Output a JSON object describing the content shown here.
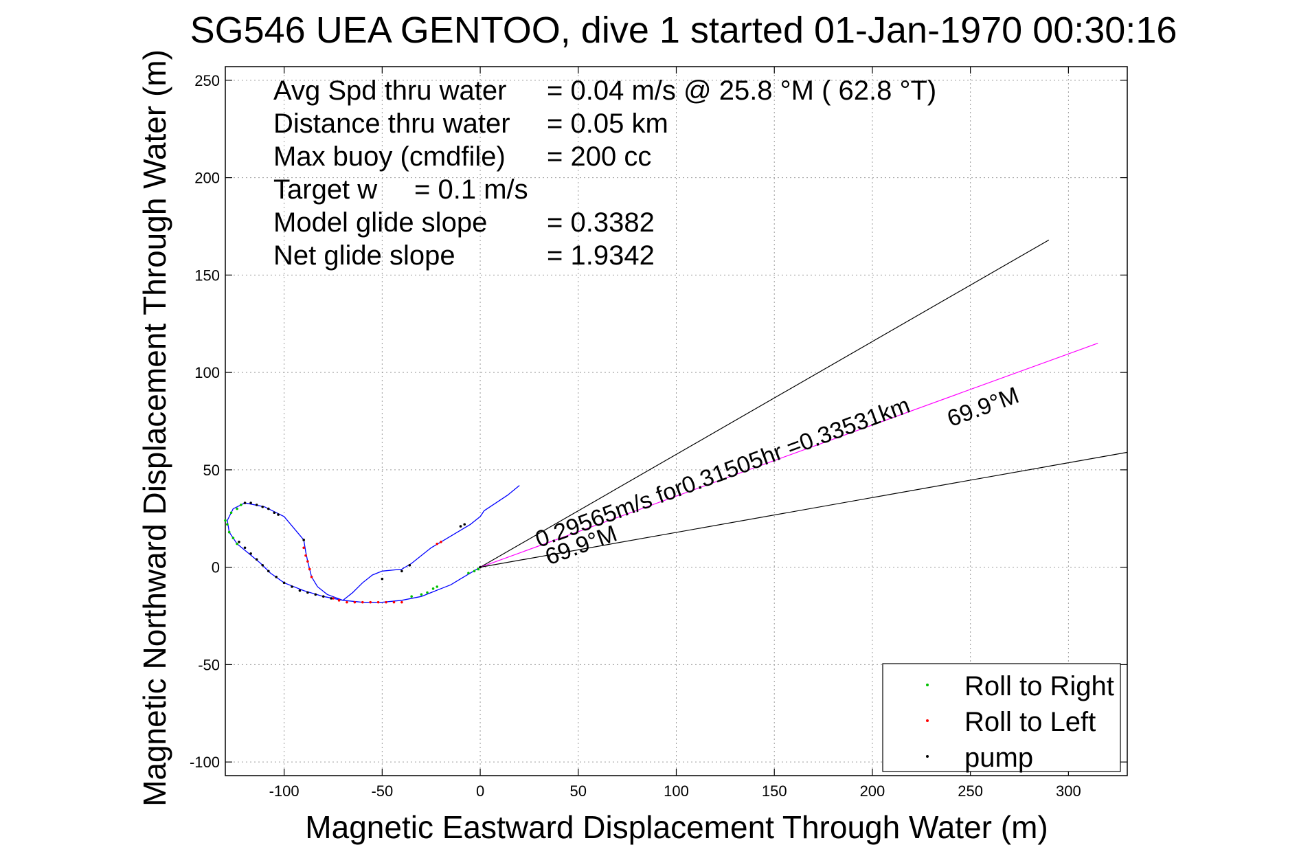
{
  "chart_data": {
    "type": "scatter",
    "title": "SG546 UEA GENTOO, dive 1 started 01-Jan-1970 00:30:16",
    "xlabel": "Magnetic Eastward Displacement Through Water (m)",
    "ylabel": "Magnetic Northward Displacement Through Water (m)",
    "xlim": [
      -130,
      330
    ],
    "ylim": [
      -107,
      257
    ],
    "xticks": [
      -100,
      -50,
      0,
      50,
      100,
      150,
      200,
      250,
      300
    ],
    "yticks": [
      -100,
      -50,
      0,
      50,
      100,
      150,
      200,
      250
    ],
    "grid": true,
    "legend_position": "bottom-right",
    "stats": [
      {
        "label": "Avg Spd thru water",
        "value": "=  0.04 m/s @  25.8 °M ( 62.8 °T)"
      },
      {
        "label": "Distance thru water",
        "value": "=  0.05 km"
      },
      {
        "label": "Max buoy (cmdfile)",
        "value": "= 200 cc"
      },
      {
        "label": "Target w",
        "value": "= 0.1 m/s"
      },
      {
        "label": "Model glide slope",
        "value": "= 0.3382"
      },
      {
        "label": "Net glide slope",
        "value": "= 1.9342"
      }
    ],
    "track": {
      "color": "#0000ff",
      "points": [
        [
          0,
          0
        ],
        [
          -5,
          -3
        ],
        [
          -10,
          -6
        ],
        [
          -15,
          -9
        ],
        [
          -20,
          -11
        ],
        [
          -25,
          -13
        ],
        [
          -30,
          -15
        ],
        [
          -40,
          -17
        ],
        [
          -50,
          -18
        ],
        [
          -60,
          -18
        ],
        [
          -70,
          -17
        ],
        [
          -80,
          -15
        ],
        [
          -90,
          -12
        ],
        [
          -100,
          -8
        ],
        [
          -107,
          -3
        ],
        [
          -112,
          2
        ],
        [
          -118,
          7
        ],
        [
          -124,
          12
        ],
        [
          -128,
          18
        ],
        [
          -129,
          24
        ],
        [
          -126,
          30
        ],
        [
          -120,
          33
        ],
        [
          -110,
          31
        ],
        [
          -100,
          26
        ],
        [
          -95,
          20
        ],
        [
          -90,
          14
        ],
        [
          -89,
          8
        ],
        [
          -88,
          3
        ],
        [
          -86,
          -5
        ],
        [
          -83,
          -10
        ],
        [
          -78,
          -14
        ],
        [
          -70,
          -17
        ],
        [
          -65,
          -13
        ],
        [
          -60,
          -8
        ],
        [
          -55,
          -4
        ],
        [
          -50,
          -2
        ],
        [
          -40,
          -1
        ],
        [
          -35,
          2
        ],
        [
          -30,
          6
        ],
        [
          -25,
          10
        ],
        [
          -20,
          13
        ],
        [
          -15,
          16
        ],
        [
          -10,
          19
        ],
        [
          -5,
          22
        ],
        [
          0,
          26
        ],
        [
          2,
          29
        ],
        [
          8,
          33
        ],
        [
          14,
          37
        ],
        [
          20,
          42
        ]
      ]
    },
    "series": [
      {
        "name": "Roll to Right",
        "color": "#00c000",
        "points": [
          [
            -130,
            24
          ],
          [
            -129,
            22
          ],
          [
            -128,
            18
          ],
          [
            -126,
            15
          ],
          [
            -124,
            12
          ],
          [
            -127,
            28
          ],
          [
            -124,
            30
          ],
          [
            -122,
            32
          ],
          [
            -35,
            -15
          ],
          [
            -30,
            -14
          ],
          [
            -27,
            -13
          ],
          [
            -24,
            -11
          ],
          [
            -22,
            -10
          ],
          [
            -6,
            -3
          ],
          [
            -3,
            -2
          ],
          [
            -1,
            -1
          ]
        ]
      },
      {
        "name": "Roll to Left",
        "color": "#ff0000",
        "points": [
          [
            -90,
            10
          ],
          [
            -89,
            6
          ],
          [
            -88,
            3
          ],
          [
            -87,
            -1
          ],
          [
            -86,
            -5
          ],
          [
            -75,
            -16
          ],
          [
            -72,
            -17
          ],
          [
            -68,
            -18
          ],
          [
            -64,
            -18
          ],
          [
            -60,
            -18
          ],
          [
            -56,
            -18
          ],
          [
            -52,
            -18
          ],
          [
            -48,
            -18
          ],
          [
            -44,
            -18
          ],
          [
            -40,
            -18
          ],
          [
            -22,
            12
          ],
          [
            -20,
            13
          ]
        ]
      },
      {
        "name": "pump",
        "color": "#000000",
        "points": [
          [
            -120,
            33
          ],
          [
            -117,
            33
          ],
          [
            -114,
            32
          ],
          [
            -111,
            31
          ],
          [
            -108,
            30
          ],
          [
            -105,
            28
          ],
          [
            -103,
            27
          ],
          [
            -123,
            13
          ],
          [
            -120,
            10
          ],
          [
            -117,
            7
          ],
          [
            -114,
            4
          ],
          [
            -111,
            1
          ],
          [
            -108,
            -2
          ],
          [
            -104,
            -5
          ],
          [
            -100,
            -8
          ],
          [
            -96,
            -10
          ],
          [
            -92,
            -12
          ],
          [
            -88,
            -13
          ],
          [
            -84,
            -14
          ],
          [
            -80,
            -15
          ],
          [
            -76,
            -16
          ],
          [
            -90,
            14
          ],
          [
            -50,
            -6
          ],
          [
            -40,
            -2
          ],
          [
            -36,
            1
          ],
          [
            -10,
            21
          ],
          [
            -8,
            22
          ],
          [
            0,
            0
          ]
        ]
      }
    ],
    "reference_lines": [
      {
        "name": "upper",
        "color": "#000000",
        "x": [
          0,
          290
        ],
        "y": [
          0,
          168
        ]
      },
      {
        "name": "mean",
        "color": "#ff00ff",
        "x": [
          0,
          315
        ],
        "y": [
          0,
          115
        ]
      },
      {
        "name": "lower",
        "color": "#000000",
        "x": [
          0,
          330
        ],
        "y": [
          0,
          59
        ]
      }
    ],
    "annotations": [
      {
        "text": "0.29565m/s for0.31505hr =0.33531km",
        "x": 30,
        "y": 10,
        "angle": -20.1
      },
      {
        "text": "69.9°M",
        "x": 35,
        "y": 1,
        "angle": -20.1
      },
      {
        "text": "69.9°M",
        "x": 240,
        "y": 72,
        "angle": -20.1
      }
    ]
  }
}
